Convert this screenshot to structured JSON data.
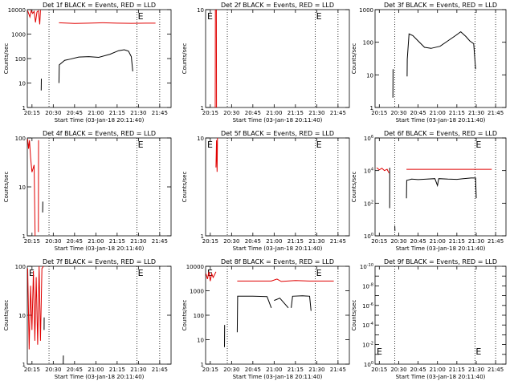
{
  "figure": {
    "panel_title_suffix": "BLACK = Events, RED = LLD",
    "xlabel": "Start Time (03-Jan-18 20:11:40)",
    "ylabel_log_words": "Counts/sec",
    "colors": {
      "events": "#000000",
      "lld": "#e00000"
    },
    "x_ticks": [
      "20:15",
      "20:30",
      "20:45",
      "21:00",
      "21:15",
      "21:30",
      "21:45"
    ],
    "x_tick_minutes": [
      15,
      30,
      45,
      60,
      75,
      90,
      105
    ],
    "x_range_minutes_after_20_00": [
      11.7,
      113
    ],
    "dotted_markers_minutes": [
      27,
      89,
      105
    ],
    "marker_letter": "E"
  },
  "chart_data": [
    {
      "type": "line",
      "title": "Det 1f BLACK = Events, RED = LLD",
      "xlabel": "Start Time (03-Jan-18 20:11:40)",
      "ylabel": "Counts/sec",
      "yscale": "log",
      "ylim": [
        1,
        10000
      ],
      "yticks": [
        1,
        10,
        100,
        1000,
        10000
      ],
      "ytick_labels": [
        "1",
        "10",
        "100",
        "1000",
        "10000"
      ],
      "series": [
        {
          "color": "#000000",
          "segments": [
            [
              [
                21.5,
                5
              ],
              [
                21.6,
                15
              ]
            ],
            [
              [
                34,
                10
              ],
              [
                34.2,
                55
              ],
              [
                38,
                85
              ],
              [
                42,
                95
              ],
              [
                48,
                115
              ],
              [
                55,
                120
              ],
              [
                62,
                112
              ],
              [
                70,
                150
              ],
              [
                76,
                210
              ],
              [
                80,
                230
              ],
              [
                83,
                200
              ],
              [
                85,
                120
              ],
              [
                86,
                30
              ]
            ]
          ]
        },
        {
          "color": "#e00000",
          "segments": [
            [
              [
                12,
                9000
              ],
              [
                13.5,
                5000
              ],
              [
                14.5,
                9000
              ],
              [
                15.5,
                7000
              ],
              [
                16.5,
                8500
              ],
              [
                17.5,
                3000
              ],
              [
                18.5,
                8000
              ],
              [
                19.5,
                9000
              ],
              [
                20.5,
                2500
              ],
              [
                21,
                9500
              ]
            ],
            [
              [
                34,
                2900
              ],
              [
                45,
                2700
              ],
              [
                55,
                2800
              ],
              [
                65,
                2900
              ],
              [
                75,
                2800
              ],
              [
                85,
                2750
              ],
              [
                95,
                2800
              ],
              [
                102,
                2800
              ]
            ]
          ]
        }
      ]
    },
    {
      "type": "line",
      "title": "Det 2f BLACK = Events, RED = LLD",
      "xlabel": "Start Time (03-Jan-18 20:11:40)",
      "ylabel": "Counts/sec",
      "yscale": "log",
      "ylim": [
        1,
        10
      ],
      "yticks": [
        1,
        10
      ],
      "ytick_labels": [
        "1",
        "10"
      ],
      "series": [
        {
          "color": "#000000",
          "segments": []
        },
        {
          "color": "#e00000",
          "segments": [
            [
              [
                18.5,
                1
              ],
              [
                18.6,
                10
              ]
            ],
            [
              [
                19.3,
                10
              ],
              [
                19.4,
                1
              ]
            ]
          ]
        }
      ]
    },
    {
      "type": "line",
      "title": "Det 3f BLACK = Events, RED = LLD",
      "xlabel": "Start Time (03-Jan-18 20:11:40)",
      "ylabel": "Counts/sec",
      "yscale": "log",
      "ylim": [
        1,
        1000
      ],
      "yticks": [
        1,
        10,
        100,
        1000
      ],
      "ytick_labels": [
        "1",
        "10",
        "100",
        "1000"
      ],
      "series": [
        {
          "color": "#000000",
          "segments": [
            [
              [
                25.5,
                2
              ],
              [
                25.6,
                15
              ]
            ],
            [
              [
                36.5,
                9
              ],
              [
                36.6,
                30
              ],
              [
                38,
                180
              ],
              [
                41,
                160
              ],
              [
                45,
                110
              ],
              [
                50,
                70
              ],
              [
                55,
                65
              ],
              [
                62,
                75
              ],
              [
                68,
                110
              ],
              [
                74,
                160
              ],
              [
                78,
                210
              ],
              [
                82,
                150
              ],
              [
                85,
                110
              ],
              [
                88,
                90
              ],
              [
                89.5,
                15
              ]
            ]
          ]
        },
        {
          "color": "#e00000",
          "segments": []
        }
      ]
    },
    {
      "type": "line",
      "title": "Det 4f BLACK = Events, RED = LLD",
      "xlabel": "Start Time (03-Jan-18 20:11:40)",
      "ylabel": "Counts/sec",
      "yscale": "log",
      "ylim": [
        1,
        100
      ],
      "yticks": [
        1,
        10,
        100
      ],
      "ytick_labels": [
        "1",
        "10",
        "100"
      ],
      "series": [
        {
          "color": "#000000",
          "segments": [
            [
              [
                22.5,
                3
              ],
              [
                22.6,
                5
              ]
            ]
          ]
        },
        {
          "color": "#e00000",
          "segments": [
            [
              [
                12,
                95
              ],
              [
                12.6,
                60
              ],
              [
                13.2,
                90
              ],
              [
                14,
                40
              ],
              [
                15,
                20
              ],
              [
                16.5,
                28
              ],
              [
                17.2,
                1
              ]
            ],
            [
              [
                19.5,
                1.2
              ],
              [
                19.6,
                90
              ]
            ]
          ]
        }
      ]
    },
    {
      "type": "line",
      "title": "Det 5f BLACK = Events, RED = LLD",
      "xlabel": "Start Time (03-Jan-18 20:11:40)",
      "ylabel": "Counts/sec",
      "yscale": "log",
      "ylim": [
        1,
        10
      ],
      "yticks": [
        1,
        10
      ],
      "ytick_labels": [
        "1",
        "10"
      ],
      "series": [
        {
          "color": "#000000",
          "segments": []
        },
        {
          "color": "#e00000",
          "segments": [
            [
              [
                19,
                5
              ],
              [
                19.4,
                9.5
              ],
              [
                19.8,
                4.5
              ],
              [
                20.1,
                10
              ]
            ]
          ]
        }
      ]
    },
    {
      "type": "line",
      "title": "Det 6f BLACK = Events, RED = LLD",
      "xlabel": "Start Time (03-Jan-18 20:11:40)",
      "ylabel": "Counts/sec",
      "yscale": "log",
      "ylim": [
        1,
        1000000
      ],
      "yticks": [
        1,
        100,
        10000,
        1000000
      ],
      "ytick_labels": [
        "10^0",
        "10^2",
        "10^4",
        "10^6"
      ],
      "series": [
        {
          "color": "#000000",
          "segments": [
            [
              [
                23,
                50
              ],
              [
                23.1,
                15000
              ]
            ],
            [
              [
                27,
                4
              ],
              [
                27.1,
                2
              ]
            ],
            [
              [
                36,
                200
              ],
              [
                36.2,
                2500
              ],
              [
                40,
                3000
              ],
              [
                45,
                2800
              ],
              [
                52,
                3000
              ],
              [
                58,
                3200
              ],
              [
                60,
                1200
              ],
              [
                61,
                3200
              ],
              [
                68,
                3000
              ],
              [
                75,
                2900
              ],
              [
                80,
                3200
              ],
              [
                86,
                3500
              ],
              [
                89.5,
                3500
              ],
              [
                90,
                200
              ]
            ]
          ]
        },
        {
          "color": "#e00000",
          "segments": [
            [
              [
                13,
                15000
              ],
              [
                15,
                11000
              ],
              [
                17,
                14000
              ],
              [
                19,
                10000
              ],
              [
                21,
                12000
              ],
              [
                22.5,
                7000
              ]
            ],
            [
              [
                36,
                12000
              ],
              [
                50,
                12000
              ],
              [
                65,
                12000
              ],
              [
                80,
                12000
              ],
              [
                95,
                12000
              ],
              [
                102,
                12000
              ]
            ]
          ]
        }
      ]
    },
    {
      "type": "line",
      "title": "Det 7f BLACK = Events, RED = LLD",
      "xlabel": "Start Time (03-Jan-18 20:11:40)",
      "ylabel": "Counts/sec",
      "yscale": "log",
      "ylim": [
        1,
        100
      ],
      "yticks": [
        1,
        10,
        100
      ],
      "ytick_labels": [
        "1",
        "10",
        "100"
      ],
      "series": [
        {
          "color": "#000000",
          "segments": [
            [
              [
                23.5,
                5
              ],
              [
                23.6,
                9
              ]
            ],
            [
              [
                37,
                1
              ],
              [
                37.1,
                1.5
              ]
            ]
          ]
        },
        {
          "color": "#e00000",
          "segments": [
            [
              [
                12,
                90
              ],
              [
                13,
                2
              ],
              [
                14,
                40
              ],
              [
                15,
                5
              ],
              [
                16,
                80
              ],
              [
                17,
                3
              ],
              [
                18,
                60
              ],
              [
                19,
                2.5
              ],
              [
                20,
                100
              ],
              [
                21,
                3
              ],
              [
                22,
                90
              ],
              [
                23,
                100
              ]
            ]
          ]
        }
      ]
    },
    {
      "type": "line",
      "title": "Det 8f BLACK = Events, RED = LLD",
      "xlabel": "Start Time (03-Jan-18 20:11:40)",
      "ylabel": "Counts/sec",
      "yscale": "log",
      "ylim": [
        1,
        10000
      ],
      "yticks": [
        1,
        10,
        100,
        1000,
        10000
      ],
      "ytick_labels": [
        "1",
        "10",
        "100",
        "1000",
        "10000"
      ],
      "series": [
        {
          "color": "#000000",
          "segments": [
            [
              [
                25,
                5
              ],
              [
                25.1,
                40
              ]
            ],
            [
              [
                34,
                20
              ],
              [
                34.3,
                600
              ],
              [
                45,
                600
              ],
              [
                55,
                580
              ],
              [
                58,
                200
              ]
            ],
            [
              [
                60,
                400
              ],
              [
                64,
                500
              ],
              [
                70,
                200
              ]
            ],
            [
              [
                72,
                200
              ],
              [
                73,
                600
              ],
              [
                80,
                620
              ],
              [
                85,
                600
              ],
              [
                86,
                150
              ]
            ]
          ]
        },
        {
          "color": "#e00000",
          "segments": [
            [
              [
                12,
                5000
              ],
              [
                13,
                3000
              ],
              [
                14,
                6000
              ],
              [
                15,
                2500
              ],
              [
                16,
                5000
              ],
              [
                17,
                3500
              ],
              [
                18,
                4500
              ],
              [
                19,
                6000
              ]
            ],
            [
              [
                34,
                2500
              ],
              [
                45,
                2500
              ],
              [
                58,
                2500
              ],
              [
                62,
                3000
              ],
              [
                65,
                2400
              ],
              [
                75,
                2600
              ],
              [
                85,
                2500
              ],
              [
                102,
                2500
              ]
            ]
          ]
        }
      ]
    },
    {
      "type": "line",
      "title": "Det 9f BLACK = Events, RED = LLD",
      "xlabel": "Start Time (03-Jan-18 20:11:40)",
      "ylabel": "Counts/sec",
      "yscale": "log",
      "ylim": [
        1,
        1e-10
      ],
      "yticks": [
        1,
        0.1,
        0.01,
        0.001,
        0.0001,
        1e-05,
        1e-06,
        1e-07,
        1e-08,
        1e-09,
        1e-10
      ],
      "ytick_labels": [
        "10^0",
        "",
        "10^-2",
        "",
        "10^-4",
        "",
        "10^-6",
        "",
        "10^-8",
        "",
        "10^-10"
      ],
      "series": [
        {
          "color": "#000000",
          "segments": []
        },
        {
          "color": "#e00000",
          "segments": []
        }
      ]
    }
  ]
}
